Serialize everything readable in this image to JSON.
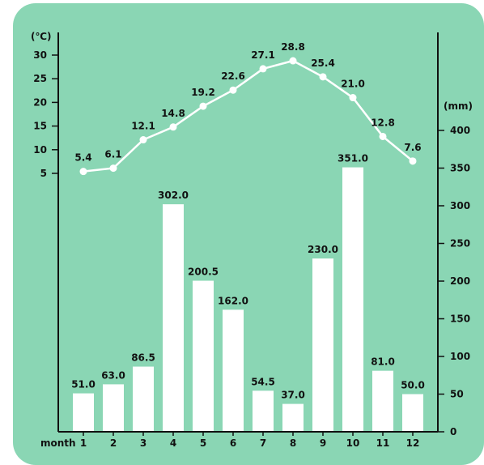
{
  "chart_data": {
    "type": "bar+line",
    "x_axis_label": "month",
    "categories": [
      "1",
      "2",
      "3",
      "4",
      "5",
      "6",
      "7",
      "8",
      "9",
      "10",
      "11",
      "12"
    ],
    "temperature": {
      "unit": "(℃)",
      "ylim": [
        5,
        30
      ],
      "ticks": [
        5,
        10,
        15,
        20,
        25,
        30
      ],
      "values": [
        5.4,
        6.1,
        12.1,
        14.8,
        19.2,
        22.6,
        27.1,
        28.8,
        25.4,
        21.0,
        12.8,
        7.6
      ],
      "labels": [
        "5.4",
        "6.1",
        "12.1",
        "14.8",
        "19.2",
        "22.6",
        "27.1",
        "28.8",
        "25.4",
        "21.0",
        "12.8",
        "7.6"
      ]
    },
    "precipitation": {
      "unit": "(mm)",
      "ylim": [
        0,
        400
      ],
      "ticks": [
        0,
        50,
        100,
        150,
        200,
        250,
        300,
        350,
        400
      ],
      "values": [
        51.0,
        63.0,
        86.5,
        302.0,
        200.5,
        162.0,
        54.5,
        37.0,
        230.0,
        351.0,
        81.0,
        50.0
      ],
      "labels": [
        "51.0",
        "63.0",
        "86.5",
        "302.0",
        "200.5",
        "162.0",
        "54.5",
        "37.0",
        "230.0",
        "351.0",
        "81.0",
        "50.0"
      ]
    },
    "colors": {
      "background": "#8ad6b4",
      "bars": "#ffffff",
      "line": "#ffffff",
      "axis": "#111111",
      "text": "#111111"
    },
    "grid": false,
    "legend": "none"
  }
}
